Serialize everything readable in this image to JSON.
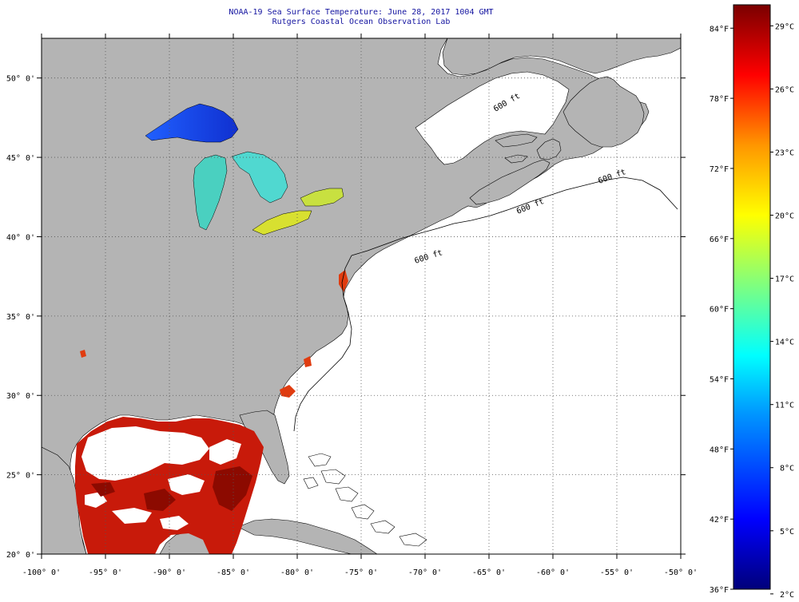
{
  "header": {
    "title": "NOAA-19 Sea Surface Temperature:  June 28, 2017 1004 GMT",
    "subtitle": "Rutgers Coastal Ocean Observation Lab"
  },
  "map": {
    "lon_range": [
      -100,
      -50
    ],
    "lat_range": [
      20,
      52.5
    ],
    "lon_ticks": [
      {
        "value": -100,
        "label": "-100° 0'"
      },
      {
        "value": -95,
        "label": "-95° 0'"
      },
      {
        "value": -90,
        "label": "-90° 0'"
      },
      {
        "value": -85,
        "label": "-85° 0'"
      },
      {
        "value": -80,
        "label": "-80° 0'"
      },
      {
        "value": -75,
        "label": "-75° 0'"
      },
      {
        "value": -70,
        "label": "-70° 0'"
      },
      {
        "value": -65,
        "label": "-65° 0'"
      },
      {
        "value": -60,
        "label": "-60° 0'"
      },
      {
        "value": -55,
        "label": "-55° 0'"
      },
      {
        "value": -50,
        "label": "-50° 0'"
      }
    ],
    "lat_ticks": [
      {
        "value": 20,
        "label": "20° 0'"
      },
      {
        "value": 25,
        "label": "25° 0'"
      },
      {
        "value": 30,
        "label": "30° 0'"
      },
      {
        "value": 35,
        "label": "35° 0'"
      },
      {
        "value": 40,
        "label": "40° 0'"
      },
      {
        "value": 45,
        "label": "45° 0'"
      },
      {
        "value": 50,
        "label": "50° 0'"
      }
    ],
    "land_color": "#b4b4b4",
    "ocean_color": "#ffffff",
    "grid": "dotted",
    "contour_labels": [
      "600 ft",
      "600 ft",
      "600 ft",
      "600 ft"
    ]
  },
  "colorbar": {
    "range_f": [
      36,
      86
    ],
    "fahrenheit_labels": [
      "84°F",
      "78°F",
      "72°F",
      "66°F",
      "60°F",
      "54°F",
      "48°F",
      "42°F",
      "36°F"
    ],
    "celsius_labels": [
      "29°C",
      "26°C",
      "23°C",
      "20°C",
      "17°C",
      "14°C",
      "11°C",
      "8°C",
      "5°C",
      "2°C"
    ],
    "colors": [
      "#00007a",
      "#0000ff",
      "#0096ff",
      "#00ffff",
      "#7fff7f",
      "#ffff00",
      "#ff9600",
      "#ff0000",
      "#7a0000"
    ]
  }
}
